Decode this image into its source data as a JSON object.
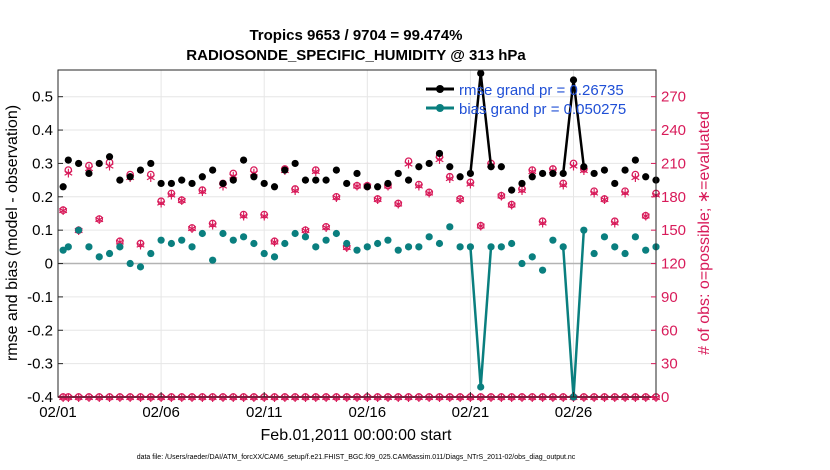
{
  "chart_data": {
    "type": "line",
    "title": "Tropics 9653 / 9704 = 99.474%",
    "subtitle": "RADIOSONDE_SPECIFIC_HUMIDITY @ 313 hPa",
    "xlabel": "Feb.01,2011 00:00:00 start",
    "ylabel_left": "rmse and bias (model - observation)",
    "ylabel_right": "# of obs: o=possible; ∗=evaluated",
    "footnote": "data file: /Users/raeder/DAI/ATM_forcXX/CAM6_setup/f.e21.FHIST_BGC.f09_025.CAM6assim.011/Diags_NTrS_2011-02/obs_diag_output.nc",
    "xlim": [
      0,
      29
    ],
    "ylim_left": [
      -0.4,
      0.58
    ],
    "ylim_right": [
      0,
      294
    ],
    "grid": true,
    "x_ticks": [
      0,
      5,
      10,
      15,
      20,
      25
    ],
    "x_tick_labels": [
      "02/01",
      "02/06",
      "02/11",
      "02/16",
      "02/21",
      "02/26"
    ],
    "y_ticks_left": [
      -0.4,
      -0.3,
      -0.2,
      -0.1,
      0,
      0.1,
      0.2,
      0.3,
      0.4,
      0.5
    ],
    "y_tick_labels_left": [
      "-0.4",
      "-0.3",
      "-0.2",
      "-0.1",
      "0",
      "0.1",
      "0.2",
      "0.3",
      "0.4",
      "0.5"
    ],
    "y_ticks_right": [
      0,
      30,
      60,
      90,
      120,
      150,
      180,
      210,
      240,
      270
    ],
    "y_tick_labels_right": [
      "0",
      "30",
      "60",
      "90",
      "120",
      "150",
      "180",
      "210",
      "240",
      "270"
    ],
    "legend": [
      "rmse grand pr = 0.26735",
      "bias grand pr = 0.050275"
    ],
    "legend_position": "top-right",
    "x": [
      0.25,
      0.5,
      1.0,
      1.5,
      2.0,
      2.5,
      3.0,
      3.5,
      4.0,
      4.5,
      5.0,
      5.5,
      6.0,
      6.5,
      7.0,
      7.5,
      8.0,
      8.5,
      9.0,
      9.5,
      10.0,
      10.5,
      11.0,
      11.5,
      12.0,
      12.5,
      13.0,
      13.5,
      14.0,
      14.5,
      15.0,
      15.5,
      16.0,
      16.5,
      17.0,
      17.5,
      18.0,
      18.5,
      19.0,
      19.5,
      20.0,
      20.5,
      21.0,
      21.5,
      22.0,
      22.5,
      23.0,
      23.5,
      24.0,
      24.5,
      25.0,
      25.5,
      26.0,
      26.5,
      27.0,
      27.5,
      28.0,
      28.5,
      29.0
    ],
    "series": [
      {
        "name": "rmse",
        "color": "#000000",
        "values": [
          0.23,
          0.31,
          0.3,
          0.27,
          0.3,
          0.32,
          0.25,
          0.26,
          0.28,
          0.3,
          0.24,
          0.24,
          0.25,
          0.24,
          0.26,
          0.28,
          0.24,
          0.25,
          0.31,
          0.26,
          0.24,
          0.23,
          0.28,
          0.3,
          0.25,
          0.25,
          0.25,
          0.28,
          0.24,
          0.27,
          0.23,
          0.23,
          0.24,
          0.27,
          0.25,
          0.29,
          0.3,
          0.33,
          0.29,
          0.26,
          0.27,
          0.57,
          0.29,
          0.29,
          0.22,
          0.24,
          0.26,
          0.27,
          0.27,
          0.27,
          0.55,
          0.29,
          0.27,
          0.28,
          0.24,
          0.28,
          0.31,
          0.26,
          0.25
        ]
      },
      {
        "name": "bias",
        "color": "#0a7f7f",
        "values": [
          0.04,
          0.05,
          0.1,
          0.05,
          0.02,
          0.03,
          0.05,
          0.0,
          -0.01,
          0.03,
          0.07,
          0.06,
          0.07,
          0.05,
          0.09,
          0.01,
          0.09,
          0.07,
          0.08,
          0.06,
          0.03,
          0.02,
          0.06,
          0.09,
          0.08,
          0.05,
          0.07,
          0.09,
          0.06,
          0.04,
          0.05,
          0.06,
          0.07,
          0.04,
          0.05,
          0.05,
          0.08,
          0.06,
          0.11,
          0.05,
          0.05,
          -0.37,
          0.05,
          0.05,
          0.06,
          0.0,
          0.02,
          -0.02,
          0.07,
          0.05,
          -0.4,
          0.1,
          0.03,
          0.08,
          0.05,
          0.03,
          0.08,
          0.04,
          0.05
        ]
      },
      {
        "name": "possible",
        "color": "#d81b5a",
        "marker": "o",
        "values": [
          168,
          204,
          150,
          208,
          160,
          211,
          140,
          200,
          138,
          200,
          176,
          183,
          177,
          152,
          186,
          156,
          192,
          201,
          164,
          204,
          164,
          140,
          205,
          187,
          150,
          204,
          153,
          180,
          135,
          190,
          190,
          178,
          190,
          174,
          212,
          191,
          184,
          216,
          198,
          178,
          193,
          154,
          210,
          181,
          173,
          187,
          204,
          158,
          205,
          192,
          210,
          205,
          185,
          178,
          158,
          185,
          200,
          163,
          183
        ]
      },
      {
        "name": "evaluated",
        "color": "#d81b5a",
        "marker": "*",
        "values": [
          168,
          202,
          150,
          206,
          160,
          208,
          140,
          198,
          137,
          198,
          175,
          182,
          177,
          152,
          185,
          155,
          190,
          199,
          163,
          202,
          163,
          140,
          204,
          186,
          150,
          203,
          153,
          180,
          135,
          190,
          190,
          178,
          190,
          174,
          210,
          190,
          184,
          214,
          197,
          178,
          192,
          154,
          209,
          181,
          173,
          186,
          203,
          157,
          204,
          191,
          208,
          204,
          184,
          178,
          157,
          184,
          198,
          163,
          182
        ]
      }
    ],
    "baseline_count": 0
  }
}
